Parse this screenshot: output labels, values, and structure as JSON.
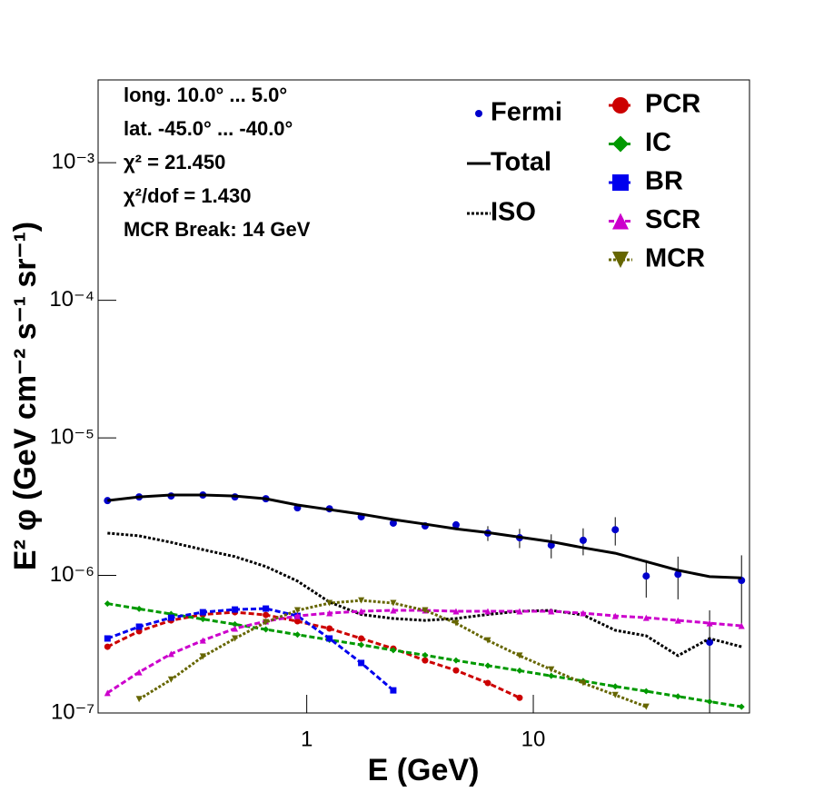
{
  "chart_data": {
    "type": "line",
    "log_x": true,
    "log_y": true,
    "xlabel": "E (GeV)",
    "ylabel": "E² φ (GeV cm⁻² s⁻¹ sr⁻¹)",
    "annotations": [
      "long. 10.0° ... 5.0°",
      "lat. -45.0° ... -40.0°",
      "χ² = 21.450",
      "χ²/dof = 1.430",
      "MCR Break: 14 GeV"
    ],
    "xlim": [
      0.12,
      90
    ],
    "ylim": [
      1e-07,
      0.004
    ],
    "xticks": [
      1,
      10
    ],
    "yticks": [
      {
        "value": 1e-07,
        "label": "10⁻⁷"
      },
      {
        "value": 1e-06,
        "label": "10⁻⁶"
      },
      {
        "value": 1e-05,
        "label": "10⁻⁵"
      },
      {
        "value": 0.0001,
        "label": "10⁻⁴"
      },
      {
        "value": 0.001,
        "label": "10⁻³"
      }
    ],
    "x": [
      0.132,
      0.182,
      0.252,
      0.348,
      0.482,
      0.66,
      0.91,
      1.26,
      1.74,
      2.41,
      3.33,
      4.56,
      6.3,
      8.7,
      12.0,
      16.6,
      23.0,
      31.5,
      43.5,
      60,
      83
    ],
    "series": [
      {
        "name": "Fermi",
        "color": "#0000cc",
        "marker": "circle",
        "line": "none",
        "values": [
          3.5e-06,
          3.72e-06,
          3.78e-06,
          3.84e-06,
          3.72e-06,
          3.61e-06,
          3.1e-06,
          3.05e-06,
          2.67e-06,
          2.4e-06,
          2.29e-06,
          2.33e-06,
          2.03e-06,
          1.88e-06,
          1.66e-06,
          1.8e-06,
          2.15e-06,
          9.9e-07,
          1.02e-06,
          3.27e-07,
          9.2e-07
        ],
        "errors": [
          1e-07,
          1e-07,
          1e-07,
          1e-07,
          1e-07,
          1e-07,
          1e-07,
          1e-07,
          1e-07,
          1e-07,
          1.2e-07,
          1.5e-07,
          2.5e-07,
          3e-07,
          3.3e-07,
          4e-07,
          5e-07,
          3e-07,
          3.5e-07,
          2.3e-07,
          4.8e-07
        ]
      },
      {
        "name": "Total",
        "color": "#000000",
        "marker": "none",
        "line": "solid",
        "values": [
          3.5e-06,
          3.72e-06,
          3.84e-06,
          3.84e-06,
          3.78e-06,
          3.61e-06,
          3.25e-06,
          3.01e-06,
          2.79e-06,
          2.55e-06,
          2.36e-06,
          2.18e-06,
          2.05e-06,
          1.9e-06,
          1.76e-06,
          1.59e-06,
          1.45e-06,
          1.26e-06,
          1.09e-06,
          9.8e-07,
          9.6e-07
        ]
      },
      {
        "name": "ISO",
        "color": "#000000",
        "marker": "none",
        "line": "dotted",
        "values": [
          2.03e-06,
          1.94e-06,
          1.74e-06,
          1.54e-06,
          1.37e-06,
          1.16e-06,
          9.1e-07,
          6.4e-07,
          5.2e-07,
          4.86e-07,
          4.71e-07,
          4.86e-07,
          5.2e-07,
          5.49e-07,
          5.57e-07,
          5.16e-07,
          3.99e-07,
          3.64e-07,
          2.61e-07,
          3.48e-07,
          3.03e-07
        ]
      },
      {
        "name": "PCR",
        "color": "#cc0000",
        "marker": "circle",
        "line": "dashed",
        "values": [
          3.03e-07,
          3.93e-07,
          4.71e-07,
          5.2e-07,
          5.4e-07,
          5.16e-07,
          4.64e-07,
          4.11e-07,
          3.48e-07,
          2.94e-07,
          2.41e-07,
          2.04e-07,
          1.65e-07,
          1.29e-07,
          null,
          null,
          null,
          null,
          null,
          null,
          null
        ]
      },
      {
        "name": "IC",
        "color": "#009900",
        "marker": "diamond",
        "line": "dashed",
        "values": [
          6.24e-07,
          5.71e-07,
          5.24e-07,
          4.81e-07,
          4.41e-07,
          4.05e-07,
          3.71e-07,
          3.4e-07,
          3.13e-07,
          2.86e-07,
          2.63e-07,
          2.41e-07,
          2.21e-07,
          2.03e-07,
          1.86e-07,
          1.71e-07,
          1.56e-07,
          1.44e-07,
          1.32e-07,
          1.21e-07,
          1.11e-07
        ]
      },
      {
        "name": "BR",
        "color": "#0000ee",
        "marker": "square",
        "line": "dashed",
        "values": [
          3.48e-07,
          4.24e-07,
          4.93e-07,
          5.4e-07,
          5.65e-07,
          5.74e-07,
          5.08e-07,
          3.48e-07,
          2.31e-07,
          1.46e-07,
          null,
          null,
          null,
          null,
          null,
          null,
          null,
          null,
          null,
          null,
          null
        ]
      },
      {
        "name": "SCR",
        "color": "#cc00cc",
        "marker": "triangle",
        "line": "dashed",
        "values": [
          1.4e-07,
          1.98e-07,
          2.69e-07,
          3.37e-07,
          4.11e-07,
          4.64e-07,
          5.08e-07,
          5.32e-07,
          5.49e-07,
          5.57e-07,
          5.57e-07,
          5.49e-07,
          5.49e-07,
          5.49e-07,
          5.49e-07,
          5.32e-07,
          5.08e-07,
          4.93e-07,
          4.71e-07,
          4.5e-07,
          4.3e-07
        ]
      },
      {
        "name": "MCR",
        "color": "#666600",
        "marker": "triangle-down",
        "line": "dotted",
        "values": [
          null,
          1.26e-07,
          1.75e-07,
          2.57e-07,
          3.48e-07,
          4.57e-07,
          5.57e-07,
          6.29e-07,
          6.58e-07,
          6.29e-07,
          5.57e-07,
          4.5e-07,
          3.37e-07,
          2.61e-07,
          2.07e-07,
          1.65e-07,
          1.35e-07,
          1.11e-07,
          null,
          null,
          null
        ]
      }
    ]
  }
}
